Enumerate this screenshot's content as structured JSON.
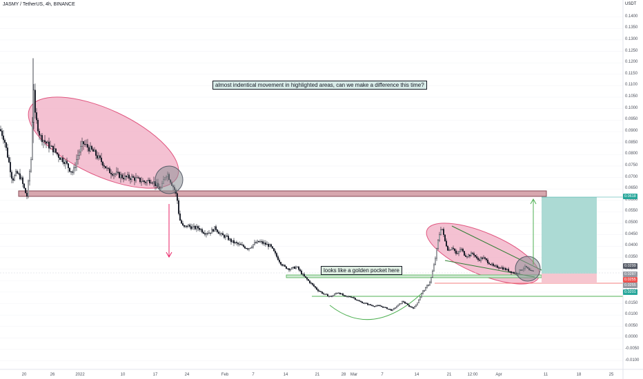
{
  "header": {
    "symbol": "JASMY / TetherUS, 4h, BINANCE",
    "currency": "USDT"
  },
  "price_axis": {
    "ticks": [
      "0.1400",
      "0.1350",
      "0.1300",
      "0.1250",
      "0.1200",
      "0.1150",
      "0.1100",
      "0.1050",
      "0.1000",
      "0.0950",
      "0.0900",
      "0.0850",
      "0.0800",
      "0.0750",
      "0.0700",
      "0.0650",
      "0.0600",
      "0.0550",
      "0.0500",
      "0.0450",
      "0.0400",
      "0.0350",
      "0.0300",
      "0.0250",
      "0.0200",
      "0.0150",
      "0.0100",
      "0.0050",
      "0.0000",
      "-0.0050",
      "-0.0100"
    ],
    "tags": [
      {
        "label": "0.0618",
        "color": "#26a69a"
      },
      {
        "label": "0.0299",
        "color": "#555a66"
      },
      {
        "label": "0.0287",
        "color": "#9598a1"
      },
      {
        "label": "0.0255",
        "color": "#ef5350"
      },
      {
        "label": "0.0255",
        "color": "#9598a1"
      },
      {
        "label": "0.0201",
        "color": "#26a69a"
      }
    ]
  },
  "time_axis": {
    "ticks": [
      "20",
      "26",
      "2022",
      "10",
      "17",
      "24",
      "Feb",
      "7",
      "14",
      "21",
      "28",
      "Mar",
      "7",
      "14",
      "21",
      "12:00",
      "Apr",
      "11",
      "18",
      "25"
    ]
  },
  "annotations": {
    "top": "almost indentical movement in highlighted areas, can we make a difference this time?",
    "pocket": "looks like a golden pocket here"
  },
  "colors": {
    "candle": "#131722",
    "highlight_fill": "#f0a6bf",
    "highlight_stroke": "#e0557f",
    "zone_fill": "#d7a7ae",
    "support_line": "#4caf50",
    "arrow_down": "#e91e63",
    "arrow_up": "#4caf50",
    "target_fill": "#a8d8d2",
    "stop_fill": "#f6c6cf"
  },
  "chart_data": {
    "type": "candlestick",
    "ylim": [
      -0.0122,
      0.1435
    ],
    "price_path": [
      [
        0,
        0.091
      ],
      [
        6,
        0.087
      ],
      [
        12,
        0.078
      ],
      [
        18,
        0.069
      ],
      [
        24,
        0.072
      ],
      [
        30,
        0.07
      ],
      [
        36,
        0.064
      ],
      [
        39,
        0.062
      ],
      [
        42,
        0.07
      ],
      [
        45,
        0.078
      ],
      [
        47,
        0.095
      ],
      [
        48,
        0.12
      ],
      [
        50,
        0.098
      ],
      [
        54,
        0.093
      ],
      [
        58,
        0.088
      ],
      [
        64,
        0.086
      ],
      [
        70,
        0.084
      ],
      [
        78,
        0.082
      ],
      [
        86,
        0.079
      ],
      [
        94,
        0.077
      ],
      [
        100,
        0.074
      ],
      [
        106,
        0.072
      ],
      [
        112,
        0.079
      ],
      [
        120,
        0.085
      ],
      [
        128,
        0.083
      ],
      [
        136,
        0.081
      ],
      [
        144,
        0.078
      ],
      [
        150,
        0.076
      ],
      [
        156,
        0.073
      ],
      [
        164,
        0.072
      ],
      [
        172,
        0.071
      ],
      [
        180,
        0.07
      ],
      [
        190,
        0.07
      ],
      [
        200,
        0.069
      ],
      [
        210,
        0.068
      ],
      [
        220,
        0.069
      ],
      [
        228,
        0.066
      ],
      [
        234,
        0.065
      ],
      [
        238,
        0.07
      ],
      [
        242,
        0.072
      ],
      [
        248,
        0.068
      ],
      [
        254,
        0.064
      ],
      [
        257,
        0.06
      ],
      [
        260,
        0.052
      ],
      [
        266,
        0.048
      ],
      [
        272,
        0.049
      ],
      [
        280,
        0.048
      ],
      [
        288,
        0.048
      ],
      [
        296,
        0.046
      ],
      [
        304,
        0.046
      ],
      [
        312,
        0.048
      ],
      [
        320,
        0.045
      ],
      [
        328,
        0.044
      ],
      [
        336,
        0.042
      ],
      [
        344,
        0.041
      ],
      [
        352,
        0.04
      ],
      [
        360,
        0.039
      ],
      [
        368,
        0.041
      ],
      [
        376,
        0.042
      ],
      [
        384,
        0.041
      ],
      [
        392,
        0.04
      ],
      [
        400,
        0.036
      ],
      [
        406,
        0.033
      ],
      [
        412,
        0.031
      ],
      [
        420,
        0.03
      ],
      [
        430,
        0.031
      ],
      [
        440,
        0.027
      ],
      [
        450,
        0.024
      ],
      [
        460,
        0.021
      ],
      [
        470,
        0.019
      ],
      [
        480,
        0.018
      ],
      [
        490,
        0.02
      ],
      [
        500,
        0.018
      ],
      [
        510,
        0.018
      ],
      [
        520,
        0.016
      ],
      [
        530,
        0.015
      ],
      [
        540,
        0.014
      ],
      [
        550,
        0.014
      ],
      [
        560,
        0.013
      ],
      [
        568,
        0.012
      ],
      [
        576,
        0.014
      ],
      [
        584,
        0.016
      ],
      [
        592,
        0.014
      ],
      [
        600,
        0.013
      ],
      [
        606,
        0.016
      ],
      [
        612,
        0.02
      ],
      [
        618,
        0.022
      ],
      [
        624,
        0.025
      ],
      [
        630,
        0.033
      ],
      [
        636,
        0.044
      ],
      [
        640,
        0.049
      ],
      [
        644,
        0.043
      ],
      [
        650,
        0.038
      ],
      [
        656,
        0.04
      ],
      [
        662,
        0.036
      ],
      [
        668,
        0.039
      ],
      [
        674,
        0.036
      ],
      [
        680,
        0.036
      ],
      [
        686,
        0.037
      ],
      [
        692,
        0.034
      ],
      [
        700,
        0.035
      ],
      [
        708,
        0.033
      ],
      [
        716,
        0.031
      ],
      [
        724,
        0.031
      ],
      [
        732,
        0.03
      ],
      [
        740,
        0.029
      ],
      [
        748,
        0.028
      ],
      [
        756,
        0.03
      ],
      [
        762,
        0.031
      ],
      [
        768,
        0.029
      ],
      [
        774,
        0.029
      ]
    ],
    "levels": {
      "resistance_zone": [
        0.0618,
        0.064
      ],
      "golden_pocket": 0.0287,
      "support": 0.0201,
      "target": 0.0618,
      "entry": 0.0299,
      "stop": 0.0255
    }
  }
}
